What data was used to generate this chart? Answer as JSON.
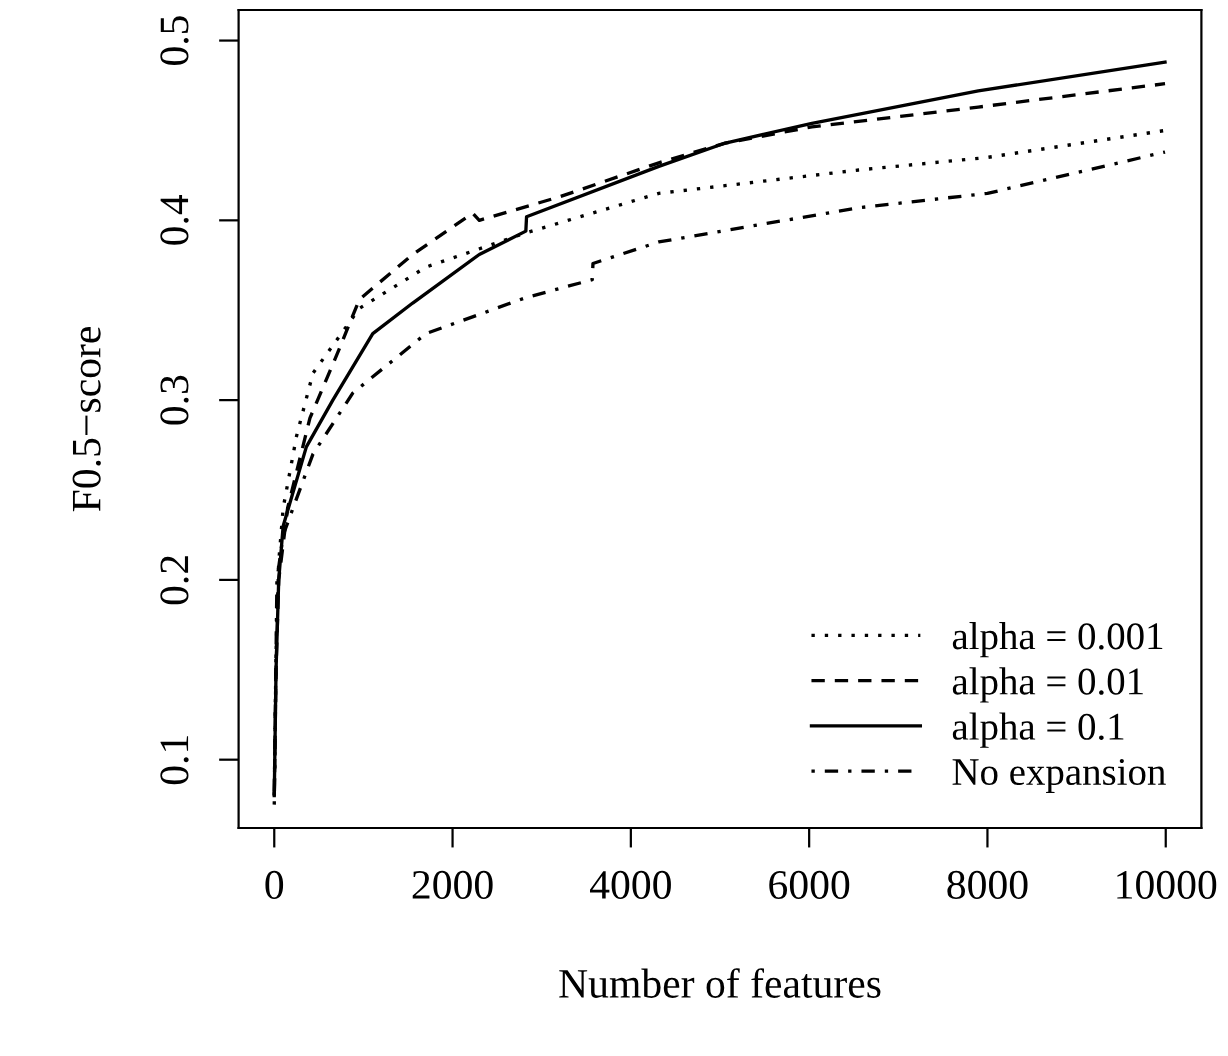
{
  "chart_data": {
    "type": "line",
    "xlabel": "Number of features",
    "ylabel": "F0.5−score",
    "xlim": [
      -400,
      10400
    ],
    "ylim": [
      0.062,
      0.517
    ],
    "xticks": [
      0,
      2000,
      4000,
      6000,
      8000,
      10000
    ],
    "yticks": [
      0.1,
      0.2,
      0.3,
      0.4,
      0.5
    ],
    "grid": false,
    "legend": "bottom right",
    "marker": "none",
    "series": [
      {
        "name": "alpha = 0.001",
        "color": "#000000",
        "line_style": "dotted",
        "x": [
          0,
          20,
          50,
          100,
          250,
          434,
          955,
          1702,
          2822,
          4314,
          6555,
          8000,
          9992
        ],
        "values": [
          0.08,
          0.16,
          0.21,
          0.24,
          0.28,
          0.315,
          0.351,
          0.374,
          0.393,
          0.415,
          0.428,
          0.435,
          0.45
        ]
      },
      {
        "name": "alpha = 0.01",
        "color": "#000000",
        "line_style": "dashed",
        "x": [
          0,
          20,
          50,
          150,
          400,
          700,
          955,
          1553,
          2224,
          2300,
          3194,
          4314,
          5060,
          6031,
          7897,
          9992
        ],
        "values": [
          0.08,
          0.15,
          0.2,
          0.24,
          0.29,
          0.325,
          0.356,
          0.381,
          0.404,
          0.4,
          0.413,
          0.432,
          0.443,
          0.452,
          0.463,
          0.476
        ]
      },
      {
        "name": "alpha = 0.1",
        "color": "#000000",
        "line_style": "solid",
        "x": [
          0,
          20,
          50,
          100,
          360,
          657,
          1105,
          1553,
          2300,
          2822,
          2830,
          4314,
          5060,
          6031,
          7897,
          9992
        ],
        "values": [
          0.08,
          0.15,
          0.2,
          0.23,
          0.274,
          0.3,
          0.337,
          0.354,
          0.381,
          0.394,
          0.402,
          0.43,
          0.443,
          0.454,
          0.472,
          0.488
        ]
      },
      {
        "name": "No expansion",
        "color": "#000000",
        "line_style": "dashdot",
        "x": [
          0,
          30,
          100,
          434,
          882,
          1702,
          2822,
          3567,
          3575,
          4314,
          6555,
          8000,
          9992
        ],
        "values": [
          0.075,
          0.2,
          0.225,
          0.27,
          0.304,
          0.337,
          0.357,
          0.367,
          0.376,
          0.388,
          0.407,
          0.415,
          0.438
        ]
      }
    ]
  }
}
